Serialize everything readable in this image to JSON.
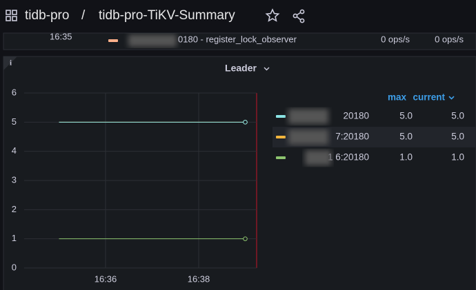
{
  "header": {
    "folder": "tidb-pro",
    "separator": "/",
    "dashboard": "tidb-pro-TiKV-Summary"
  },
  "top_row": {
    "time": "16:35",
    "name": "0180 - register_lock_observer",
    "max": "0 ops/s",
    "current": "0 ops/s"
  },
  "chart_data": {
    "type": "line",
    "title": "Leader",
    "categories": [
      null,
      "16:36",
      null,
      "16:38",
      null
    ],
    "ylim": [
      0,
      6
    ],
    "yticks": [
      0,
      1,
      2,
      3,
      4,
      5,
      6
    ],
    "grid": true,
    "legend_columns": [
      "max",
      "current"
    ],
    "series": [
      {
        "name": "20180",
        "color": "#8ae3e4",
        "values": [
          5,
          5,
          5,
          5,
          5
        ],
        "max": {
          "value": 5,
          "label": "5.0"
        },
        "current": {
          "value": 5,
          "label": "5.0"
        }
      },
      {
        "name": "7:20180",
        "color": "#f2b53c",
        "values": [
          5,
          5,
          5,
          5,
          5
        ],
        "max": {
          "value": 5,
          "label": "5.0"
        },
        "current": {
          "value": 5,
          "label": "5.0"
        }
      },
      {
        "name": "1 6:20180",
        "color": "#8dc46f",
        "values": [
          1,
          1,
          1,
          1,
          1
        ],
        "max": {
          "value": 1,
          "label": "1.0"
        },
        "current": {
          "value": 1,
          "label": "1.0"
        }
      }
    ]
  }
}
